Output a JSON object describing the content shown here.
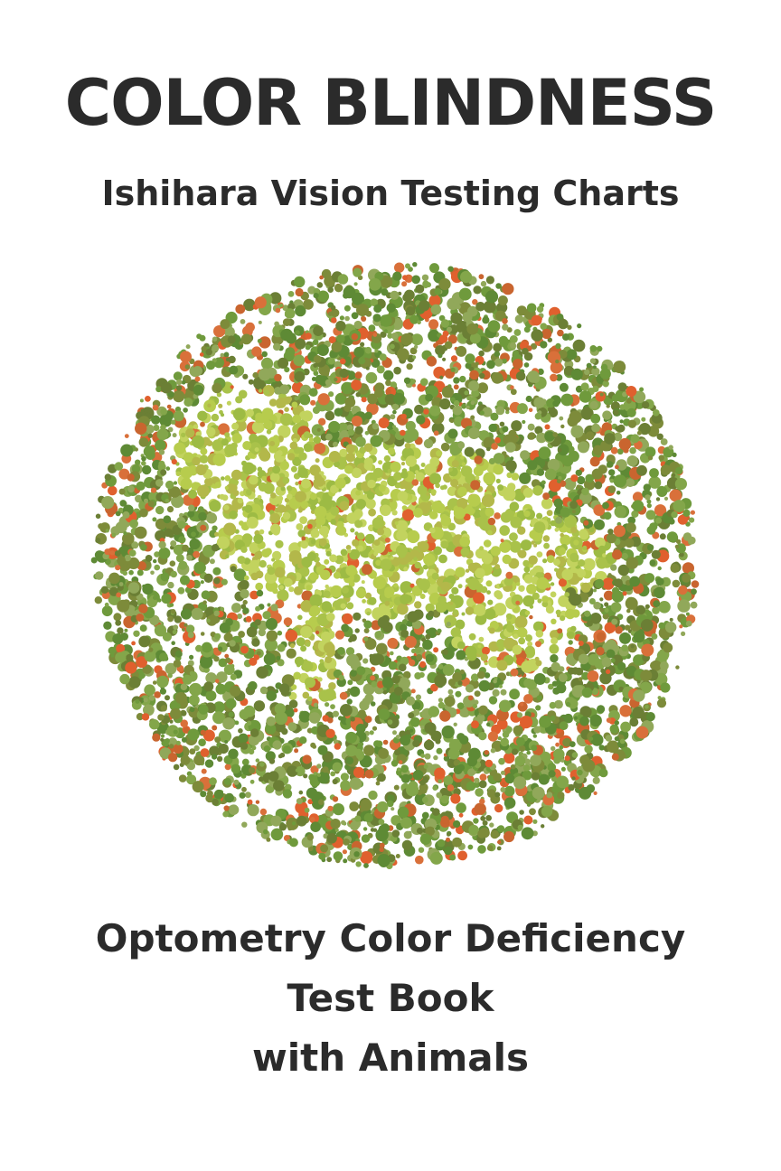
{
  "cover": {
    "title": "COLOR BLINDNESS",
    "subtitle": "Ishihara Vision Testing Charts",
    "bottom_line1": "Optometry Color Deficiency",
    "bottom_line2": "Test Book",
    "bottom_line3": "with Animals"
  },
  "plate": {
    "icon": "ishihara-color-plate",
    "colors": {
      "background_greens": [
        "#6f9a3c",
        "#5e8a35",
        "#83a64a",
        "#7d8b3a",
        "#91a85a",
        "#6b7f35"
      ],
      "oranges": [
        "#e0602e",
        "#d9703a",
        "#c9652f"
      ],
      "figure_greens": [
        "#b7cc4d",
        "#a9c24a",
        "#c2d35e",
        "#9dbb44",
        "#b3b84a"
      ]
    }
  }
}
